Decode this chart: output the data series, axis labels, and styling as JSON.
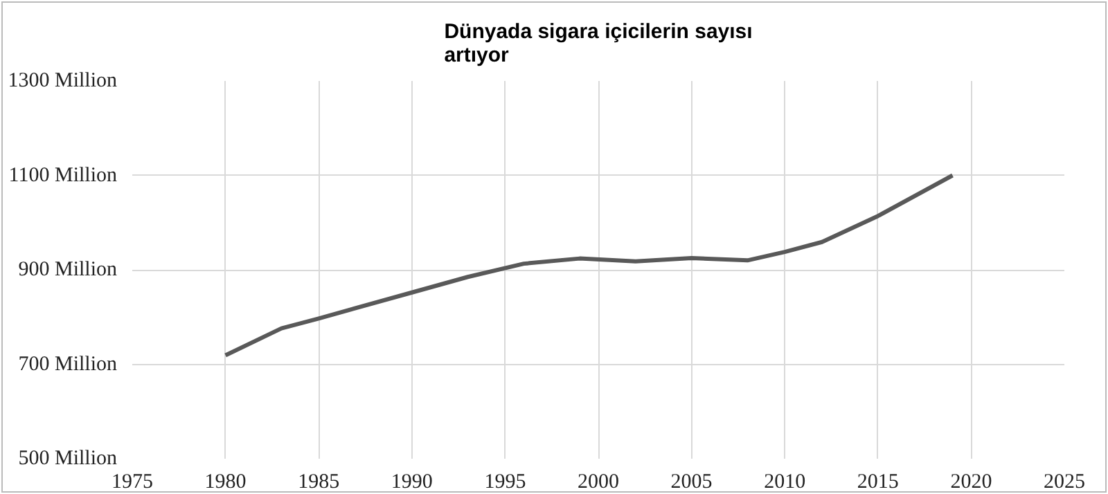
{
  "chart_data": {
    "type": "line",
    "title": "Dünyada sigara içicilerin sayısı\nartıyor",
    "x": [
      1980,
      1983,
      1985,
      1990,
      1993,
      1996,
      1999,
      2002,
      2005,
      2008,
      2010,
      2012,
      2015,
      2019
    ],
    "series": [
      {
        "color": "#595959",
        "values": [
          719,
          776,
          797,
          852,
          885,
          913,
          924,
          918,
          925,
          920,
          938,
          959,
          1014,
          1100
        ]
      }
    ],
    "xlim": [
      1975,
      2025
    ],
    "xticks": [
      1975,
      1980,
      1985,
      1990,
      1995,
      2000,
      2005,
      2010,
      2015,
      2020,
      2025
    ],
    "ylim": [
      500,
      1300
    ],
    "yticks": [
      {
        "value": 500,
        "label": "500 Million"
      },
      {
        "value": 700,
        "label": "700 Million"
      },
      {
        "value": 900,
        "label": "900 Million"
      },
      {
        "value": 1100,
        "label": "1100 Million"
      },
      {
        "value": 1300,
        "label": "1300 Million"
      }
    ],
    "grid": true,
    "marker": "none",
    "line_style": "solid"
  }
}
